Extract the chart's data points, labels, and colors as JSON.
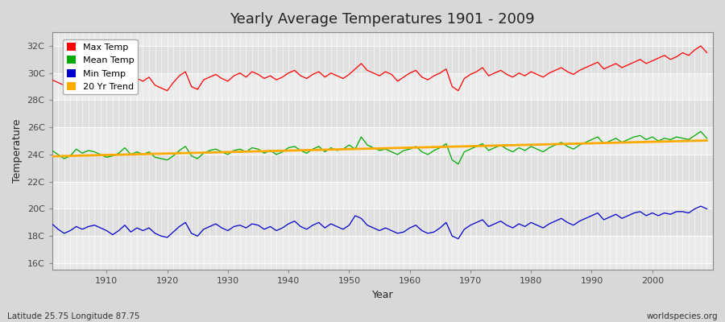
{
  "title": "Yearly Average Temperatures 1901 - 2009",
  "xlabel": "Year",
  "ylabel": "Temperature",
  "footnote_left": "Latitude 25.75 Longitude 87.75",
  "footnote_right": "worldspecies.org",
  "years_start": 1901,
  "years_end": 2009,
  "yticks": [
    16,
    18,
    20,
    22,
    24,
    26,
    28,
    30,
    32
  ],
  "ylim": [
    15.5,
    33.0
  ],
  "xlim": [
    1901,
    2010
  ],
  "bg_color": "#d8d8d8",
  "plot_bg_color": "#e8e8e8",
  "hband_light": "#ebebeb",
  "hband_dark": "#e0e0e0",
  "vgrid_color": "#ffffff",
  "max_temp_color": "#ff0000",
  "mean_temp_color": "#00aa00",
  "min_temp_color": "#0000cc",
  "trend_color": "#ffaa00",
  "legend_labels": [
    "Max Temp",
    "Mean Temp",
    "Min Temp",
    "20 Yr Trend"
  ],
  "max_temps": [
    29.5,
    29.3,
    29.1,
    29.7,
    29.9,
    29.4,
    29.6,
    29.8,
    29.5,
    29.2,
    29.0,
    29.6,
    30.0,
    29.3,
    29.6,
    29.4,
    29.7,
    29.1,
    28.9,
    28.7,
    29.3,
    29.8,
    30.1,
    29.0,
    28.8,
    29.5,
    29.7,
    29.9,
    29.6,
    29.4,
    29.8,
    30.0,
    29.7,
    30.1,
    29.9,
    29.6,
    29.8,
    29.5,
    29.7,
    30.0,
    30.2,
    29.8,
    29.6,
    29.9,
    30.1,
    29.7,
    30.0,
    29.8,
    29.6,
    29.9,
    30.3,
    30.7,
    30.2,
    30.0,
    29.8,
    30.1,
    29.9,
    29.4,
    29.7,
    30.0,
    30.2,
    29.7,
    29.5,
    29.8,
    30.0,
    30.3,
    29.0,
    28.7,
    29.6,
    29.9,
    30.1,
    30.4,
    29.8,
    30.0,
    30.2,
    29.9,
    29.7,
    30.0,
    29.8,
    30.1,
    29.9,
    29.7,
    30.0,
    30.2,
    30.4,
    30.1,
    29.9,
    30.2,
    30.4,
    30.6,
    30.8,
    30.3,
    30.5,
    30.7,
    30.4,
    30.6,
    30.8,
    31.0,
    30.7,
    30.9,
    31.1,
    31.3,
    31.0,
    31.2,
    31.5,
    31.3,
    31.7,
    32.0,
    31.5
  ],
  "mean_temps": [
    24.3,
    24.0,
    23.7,
    23.9,
    24.4,
    24.1,
    24.3,
    24.2,
    24.0,
    23.8,
    23.9,
    24.1,
    24.5,
    24.0,
    24.2,
    24.0,
    24.2,
    23.8,
    23.7,
    23.6,
    23.9,
    24.3,
    24.6,
    23.9,
    23.7,
    24.1,
    24.3,
    24.4,
    24.2,
    24.0,
    24.3,
    24.4,
    24.2,
    24.5,
    24.4,
    24.1,
    24.3,
    24.0,
    24.2,
    24.5,
    24.6,
    24.3,
    24.1,
    24.4,
    24.6,
    24.2,
    24.5,
    24.3,
    24.4,
    24.7,
    24.4,
    25.3,
    24.7,
    24.5,
    24.3,
    24.4,
    24.2,
    24.0,
    24.3,
    24.4,
    24.6,
    24.2,
    24.0,
    24.3,
    24.5,
    24.8,
    23.6,
    23.3,
    24.2,
    24.4,
    24.6,
    24.8,
    24.3,
    24.5,
    24.7,
    24.4,
    24.2,
    24.5,
    24.3,
    24.6,
    24.4,
    24.2,
    24.5,
    24.7,
    24.9,
    24.6,
    24.4,
    24.7,
    24.9,
    25.1,
    25.3,
    24.8,
    25.0,
    25.2,
    24.9,
    25.1,
    25.3,
    25.4,
    25.1,
    25.3,
    25.0,
    25.2,
    25.1,
    25.3,
    25.2,
    25.1,
    25.4,
    25.7,
    25.2
  ],
  "min_temps": [
    18.9,
    18.5,
    18.2,
    18.4,
    18.7,
    18.5,
    18.7,
    18.8,
    18.6,
    18.4,
    18.1,
    18.4,
    18.8,
    18.3,
    18.6,
    18.4,
    18.6,
    18.2,
    18.0,
    17.9,
    18.3,
    18.7,
    19.0,
    18.2,
    18.0,
    18.5,
    18.7,
    18.9,
    18.6,
    18.4,
    18.7,
    18.8,
    18.6,
    18.9,
    18.8,
    18.5,
    18.7,
    18.4,
    18.6,
    18.9,
    19.1,
    18.7,
    18.5,
    18.8,
    19.0,
    18.6,
    18.9,
    18.7,
    18.5,
    18.8,
    19.5,
    19.3,
    18.8,
    18.6,
    18.4,
    18.6,
    18.4,
    18.2,
    18.3,
    18.6,
    18.8,
    18.4,
    18.2,
    18.3,
    18.6,
    19.0,
    18.0,
    17.8,
    18.5,
    18.8,
    19.0,
    19.2,
    18.7,
    18.9,
    19.1,
    18.8,
    18.6,
    18.9,
    18.7,
    19.0,
    18.8,
    18.6,
    18.9,
    19.1,
    19.3,
    19.0,
    18.8,
    19.1,
    19.3,
    19.5,
    19.7,
    19.2,
    19.4,
    19.6,
    19.3,
    19.5,
    19.7,
    19.8,
    19.5,
    19.7,
    19.5,
    19.7,
    19.6,
    19.8,
    19.8,
    19.7,
    20.0,
    20.2,
    20.0
  ]
}
